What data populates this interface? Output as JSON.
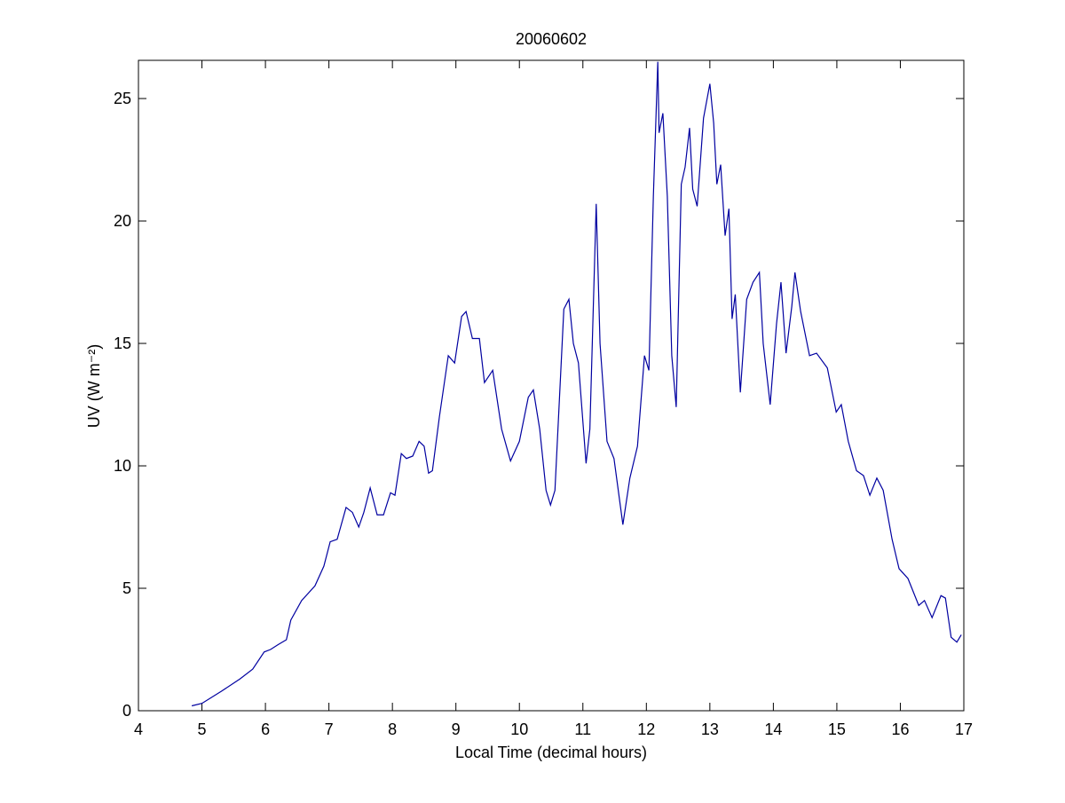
{
  "chart_data": {
    "type": "line",
    "title": "20060602",
    "xlabel": "Local Time (decimal hours)",
    "ylabel": "UV (W m⁻²)",
    "x": [
      4.84,
      5.0,
      5.31,
      5.6,
      5.8,
      5.98,
      6.08,
      6.2,
      6.33,
      6.4,
      6.57,
      6.78,
      6.92,
      7.02,
      7.13,
      7.27,
      7.37,
      7.47,
      7.55,
      7.65,
      7.76,
      7.86,
      7.97,
      8.04,
      8.14,
      8.22,
      8.32,
      8.42,
      8.5,
      8.57,
      8.63,
      8.74,
      8.88,
      8.98,
      9.09,
      9.16,
      9.26,
      9.37,
      9.45,
      9.58,
      9.72,
      9.86,
      10.0,
      10.14,
      10.22,
      10.32,
      10.42,
      10.49,
      10.56,
      10.7,
      10.78,
      10.85,
      10.93,
      11.05,
      11.11,
      11.21,
      11.27,
      11.38,
      11.49,
      11.63,
      11.74,
      11.86,
      11.97,
      12.04,
      12.11,
      12.18,
      12.2,
      12.26,
      12.33,
      12.4,
      12.47,
      12.55,
      12.61,
      12.68,
      12.73,
      12.8,
      12.9,
      13.0,
      13.06,
      13.11,
      13.17,
      13.24,
      13.3,
      13.35,
      13.4,
      13.48,
      13.58,
      13.68,
      13.78,
      13.84,
      13.95,
      14.05,
      14.12,
      14.2,
      14.29,
      14.34,
      14.43,
      14.57,
      14.68,
      14.85,
      14.99,
      15.07,
      15.18,
      15.31,
      15.42,
      15.52,
      15.63,
      15.73,
      15.87,
      15.98,
      16.12,
      16.29,
      16.38,
      16.5,
      16.64,
      16.71,
      16.8,
      16.89,
      16.96
    ],
    "series": [
      {
        "color": "#0000a0",
        "values": [
          0.2,
          0.3,
          0.8,
          1.3,
          1.7,
          2.4,
          2.5,
          2.7,
          2.9,
          3.7,
          4.5,
          5.1,
          5.9,
          6.9,
          7.0,
          8.3,
          8.1,
          7.5,
          8.1,
          9.1,
          8.0,
          8.0,
          8.9,
          8.8,
          10.5,
          10.3,
          10.4,
          11.0,
          10.8,
          9.7,
          9.8,
          12.0,
          14.5,
          14.2,
          16.1,
          16.3,
          15.2,
          15.2,
          13.4,
          13.9,
          11.5,
          10.2,
          11.0,
          12.8,
          13.1,
          11.5,
          9.0,
          8.4,
          9.0,
          16.4,
          16.8,
          15.0,
          14.2,
          10.1,
          11.5,
          20.7,
          15.0,
          11.0,
          10.3,
          7.6,
          9.5,
          10.8,
          14.5,
          13.9,
          21.0,
          26.5,
          23.6,
          24.4,
          21.0,
          14.5,
          12.4,
          21.5,
          22.2,
          23.8,
          21.3,
          20.6,
          24.2,
          25.6,
          24.0,
          21.5,
          22.3,
          19.4,
          20.5,
          16.0,
          17.0,
          13.0,
          16.8,
          17.5,
          17.9,
          15.0,
          12.5,
          15.8,
          17.5,
          14.6,
          16.5,
          17.9,
          16.3,
          14.5,
          14.6,
          14.0,
          12.2,
          12.5,
          11.0,
          9.8,
          9.6,
          8.8,
          9.5,
          9.0,
          7.0,
          5.8,
          5.4,
          4.3,
          4.5,
          3.8,
          4.7,
          4.6,
          3.0,
          2.8,
          3.1
        ]
      }
    ],
    "xlim": [
      4,
      17
    ],
    "ylim": [
      0,
      26.56
    ],
    "xticks": [
      4,
      5,
      6,
      7,
      8,
      9,
      10,
      11,
      12,
      13,
      14,
      15,
      16,
      17
    ],
    "yticks": [
      0,
      5,
      10,
      15,
      20,
      25
    ]
  }
}
